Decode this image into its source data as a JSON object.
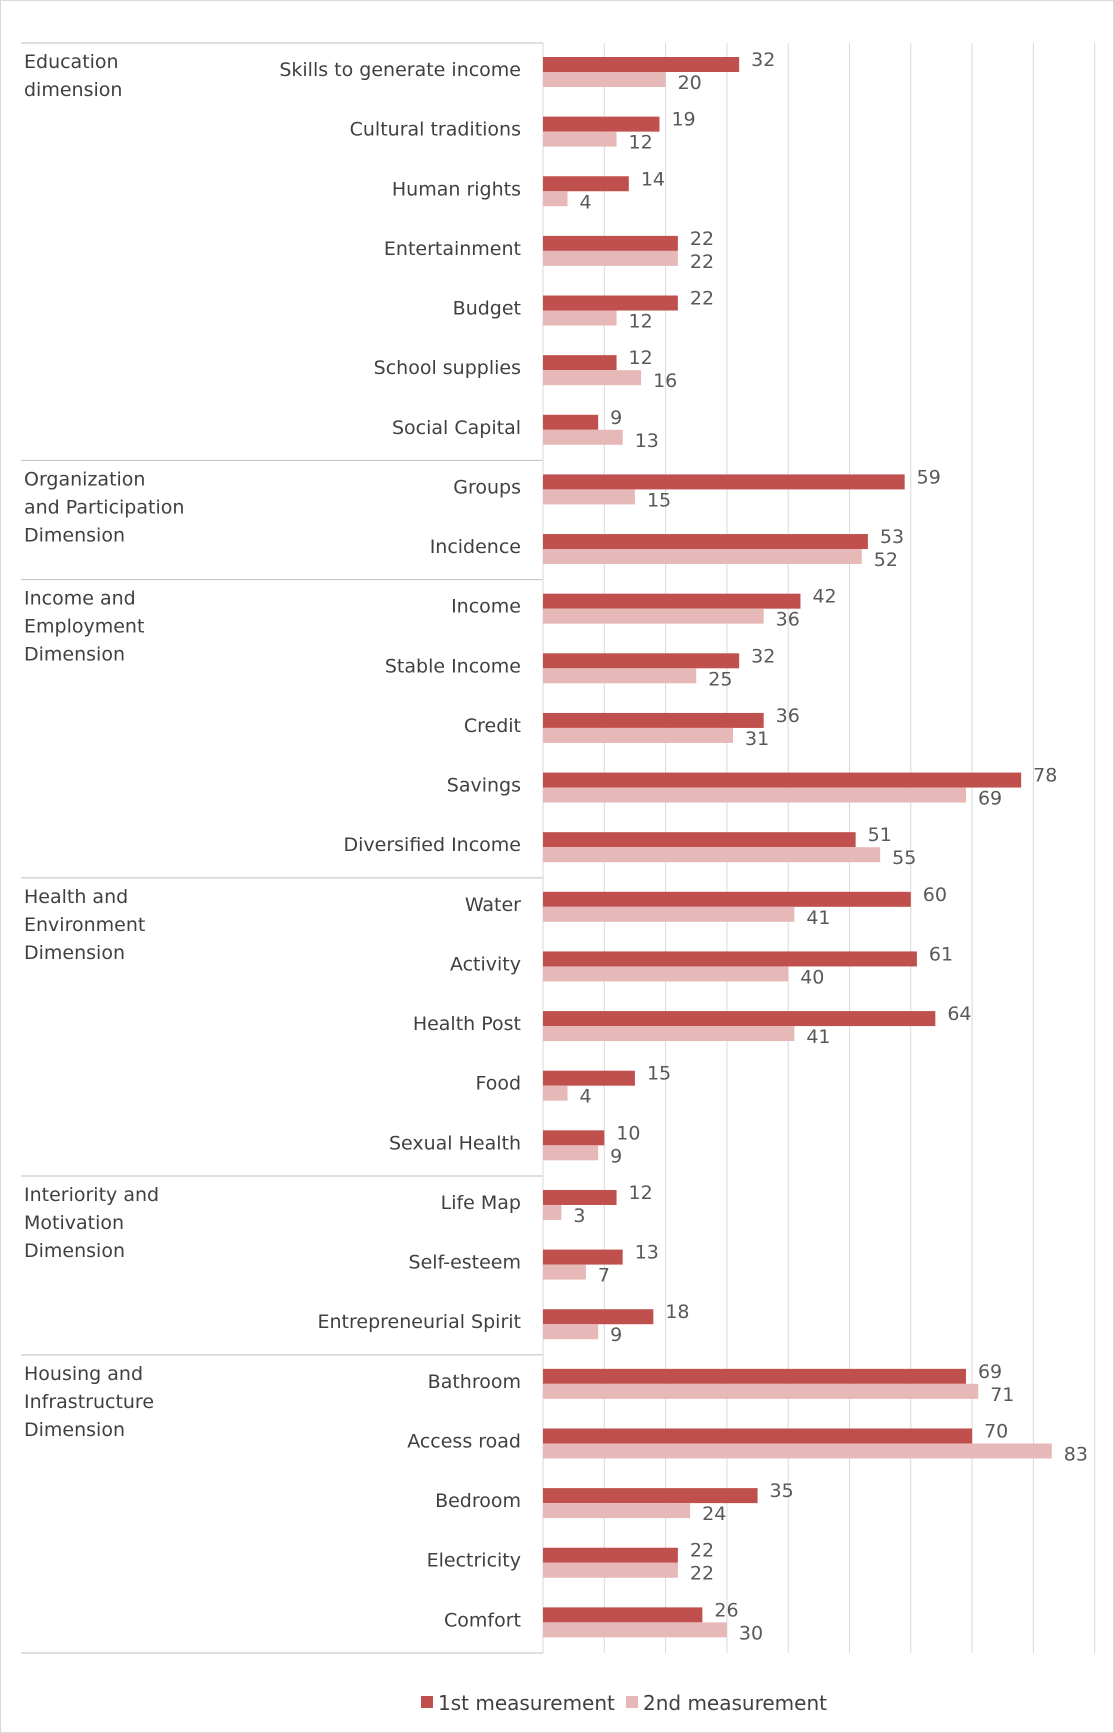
{
  "chart_data": {
    "type": "bar",
    "orientation": "horizontal",
    "grid": true,
    "legend_position": "bottom",
    "xlim": [
      0,
      90
    ],
    "colors": {
      "series1": "#c0504d",
      "series2": "#e6b9b8",
      "grid": "#d9d9d9",
      "text": "#404040"
    },
    "groups": [
      {
        "label": "Education dimension",
        "lines": [
          "Education",
          "dimension"
        ],
        "count": 7
      },
      {
        "label": "Organization and Participation Dimension",
        "lines": [
          "Organization",
          "and Participation",
          "Dimension"
        ],
        "count": 2
      },
      {
        "label": "Income and Employment Dimension",
        "lines": [
          "Income and",
          "Employment",
          "Dimension"
        ],
        "count": 5
      },
      {
        "label": "Health and Environment Dimension",
        "lines": [
          "Health and",
          "Environment",
          "Dimension"
        ],
        "count": 5
      },
      {
        "label": "Interiority and Motivation Dimension",
        "lines": [
          "Interiority and",
          "Motivation",
          "Dimension"
        ],
        "count": 3
      },
      {
        "label": "Housing and Infrastructure Dimension",
        "lines": [
          "Housing and",
          "Infrastructure",
          "Dimension"
        ],
        "count": 5
      }
    ],
    "categories": [
      "Skills to generate income",
      "Cultural traditions",
      "Human rights",
      "Entertainment",
      "Budget",
      "School supplies",
      "Social Capital",
      "Groups",
      "Incidence",
      "Income",
      "Stable Income",
      "Credit",
      "Savings",
      "Diversified Income",
      "Water",
      "Activity",
      "Health Post",
      "Food",
      "Sexual Health",
      "Life Map",
      "Self-esteem",
      "Entrepreneurial Spirit",
      "Bathroom",
      "Access road",
      "Bedroom",
      "Electricity",
      "Comfort"
    ],
    "series": [
      {
        "name": "1st measurement",
        "values": [
          32,
          19,
          14,
          22,
          22,
          12,
          9,
          59,
          53,
          42,
          32,
          36,
          78,
          51,
          60,
          61,
          64,
          15,
          10,
          12,
          13,
          18,
          69,
          70,
          35,
          22,
          26
        ]
      },
      {
        "name": "2nd measurement",
        "values": [
          20,
          12,
          4,
          22,
          12,
          16,
          13,
          15,
          52,
          36,
          25,
          31,
          69,
          55,
          41,
          40,
          41,
          4,
          9,
          3,
          7,
          9,
          71,
          83,
          24,
          22,
          30
        ]
      }
    ]
  }
}
